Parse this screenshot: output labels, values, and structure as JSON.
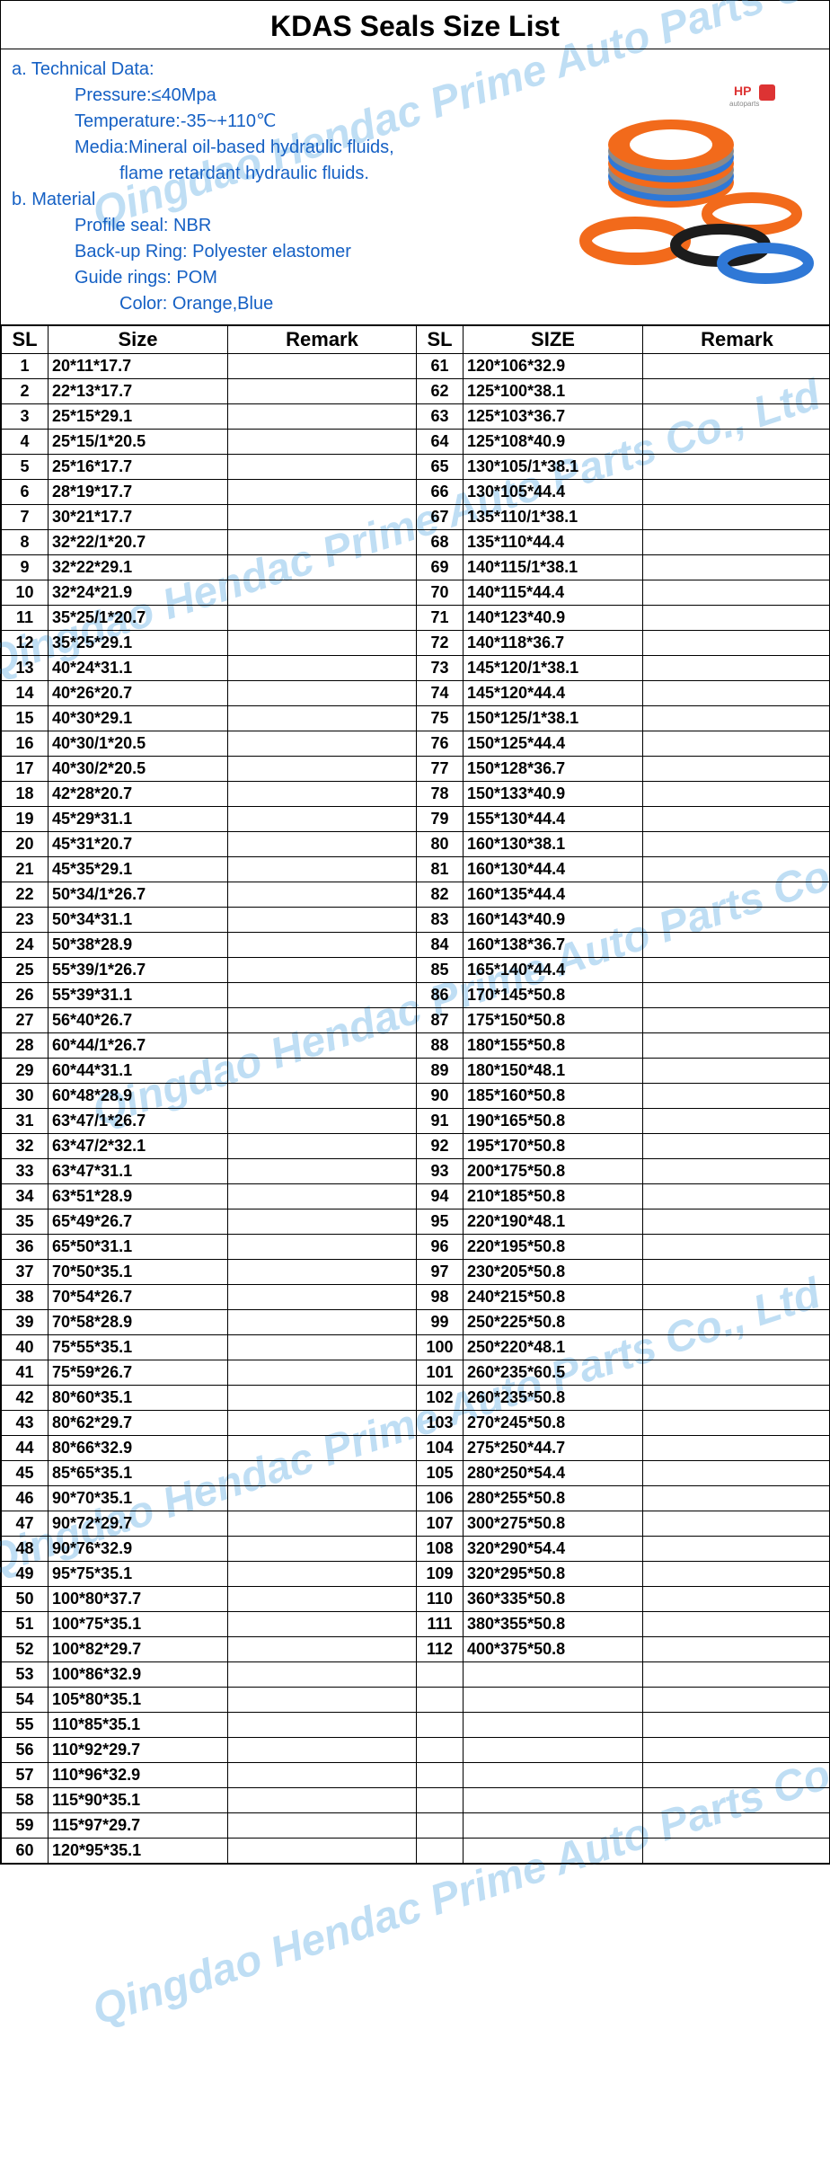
{
  "title": "KDAS Seals Size List",
  "watermark_text": "Qingdao Hendac Prime Auto Parts Co., Ltd",
  "watermark_color": "#4aa3e0",
  "tech": {
    "section_a": "a. Technical Data:",
    "pressure": "Pressure:≤40Mpa",
    "temperature": "Temperature:-35~+110℃",
    "media1": "Media:Mineral oil-based hydraulic fluids,",
    "media2": "flame retardant hydraulic fluids.",
    "section_b": "b. Material",
    "profile": "Profile seal: NBR",
    "backup": "Back-up Ring: Polyester elastomer",
    "guide": "Guide rings: POM",
    "color": "Color: Orange,Blue"
  },
  "headers": {
    "sl": "SL",
    "size_left": "Size",
    "remark": "Remark",
    "size_right": "SIZE"
  },
  "colors": {
    "text_blue": "#1560c4",
    "seal_orange": "#f26a1b",
    "seal_blue": "#2f78d6",
    "seal_dark": "#1c1c1c",
    "seal_gray": "#8a8a8a"
  },
  "rows_left": [
    {
      "sl": "1",
      "size": "20*11*17.7",
      "remark": ""
    },
    {
      "sl": "2",
      "size": "22*13*17.7",
      "remark": ""
    },
    {
      "sl": "3",
      "size": "25*15*29.1",
      "remark": ""
    },
    {
      "sl": "4",
      "size": "25*15/1*20.5",
      "remark": ""
    },
    {
      "sl": "5",
      "size": "25*16*17.7",
      "remark": ""
    },
    {
      "sl": "6",
      "size": "28*19*17.7",
      "remark": ""
    },
    {
      "sl": "7",
      "size": "30*21*17.7",
      "remark": ""
    },
    {
      "sl": "8",
      "size": "32*22/1*20.7",
      "remark": ""
    },
    {
      "sl": "9",
      "size": "32*22*29.1",
      "remark": ""
    },
    {
      "sl": "10",
      "size": "32*24*21.9",
      "remark": ""
    },
    {
      "sl": "11",
      "size": "35*25/1*20.7",
      "remark": ""
    },
    {
      "sl": "12",
      "size": "35*25*29.1",
      "remark": ""
    },
    {
      "sl": "13",
      "size": "40*24*31.1",
      "remark": ""
    },
    {
      "sl": "14",
      "size": "40*26*20.7",
      "remark": ""
    },
    {
      "sl": "15",
      "size": "40*30*29.1",
      "remark": ""
    },
    {
      "sl": "16",
      "size": "40*30/1*20.5",
      "remark": ""
    },
    {
      "sl": "17",
      "size": "40*30/2*20.5",
      "remark": ""
    },
    {
      "sl": "18",
      "size": "42*28*20.7",
      "remark": ""
    },
    {
      "sl": "19",
      "size": "45*29*31.1",
      "remark": ""
    },
    {
      "sl": "20",
      "size": "45*31*20.7",
      "remark": ""
    },
    {
      "sl": "21",
      "size": "45*35*29.1",
      "remark": ""
    },
    {
      "sl": "22",
      "size": "50*34/1*26.7",
      "remark": ""
    },
    {
      "sl": "23",
      "size": "50*34*31.1",
      "remark": ""
    },
    {
      "sl": "24",
      "size": "50*38*28.9",
      "remark": ""
    },
    {
      "sl": "25",
      "size": "55*39/1*26.7",
      "remark": ""
    },
    {
      "sl": "26",
      "size": "55*39*31.1",
      "remark": ""
    },
    {
      "sl": "27",
      "size": "56*40*26.7",
      "remark": ""
    },
    {
      "sl": "28",
      "size": "60*44/1*26.7",
      "remark": ""
    },
    {
      "sl": "29",
      "size": "60*44*31.1",
      "remark": ""
    },
    {
      "sl": "30",
      "size": "60*48*28.9",
      "remark": ""
    },
    {
      "sl": "31",
      "size": "63*47/1*26.7",
      "remark": ""
    },
    {
      "sl": "32",
      "size": "63*47/2*32.1",
      "remark": ""
    },
    {
      "sl": "33",
      "size": "63*47*31.1",
      "remark": ""
    },
    {
      "sl": "34",
      "size": "63*51*28.9",
      "remark": ""
    },
    {
      "sl": "35",
      "size": "65*49*26.7",
      "remark": ""
    },
    {
      "sl": "36",
      "size": "65*50*31.1",
      "remark": ""
    },
    {
      "sl": "37",
      "size": "70*50*35.1",
      "remark": ""
    },
    {
      "sl": "38",
      "size": "70*54*26.7",
      "remark": ""
    },
    {
      "sl": "39",
      "size": "70*58*28.9",
      "remark": ""
    },
    {
      "sl": "40",
      "size": "75*55*35.1",
      "remark": ""
    },
    {
      "sl": "41",
      "size": "75*59*26.7",
      "remark": ""
    },
    {
      "sl": "42",
      "size": "80*60*35.1",
      "remark": ""
    },
    {
      "sl": "43",
      "size": "80*62*29.7",
      "remark": ""
    },
    {
      "sl": "44",
      "size": "80*66*32.9",
      "remark": ""
    },
    {
      "sl": "45",
      "size": "85*65*35.1",
      "remark": ""
    },
    {
      "sl": "46",
      "size": "90*70*35.1",
      "remark": ""
    },
    {
      "sl": "47",
      "size": "90*72*29.7",
      "remark": ""
    },
    {
      "sl": "48",
      "size": "90*76*32.9",
      "remark": ""
    },
    {
      "sl": "49",
      "size": "95*75*35.1",
      "remark": ""
    },
    {
      "sl": "50",
      "size": "100*80*37.7",
      "remark": ""
    },
    {
      "sl": "51",
      "size": "100*75*35.1",
      "remark": ""
    },
    {
      "sl": "52",
      "size": "100*82*29.7",
      "remark": ""
    },
    {
      "sl": "53",
      "size": "100*86*32.9",
      "remark": ""
    },
    {
      "sl": "54",
      "size": "105*80*35.1",
      "remark": ""
    },
    {
      "sl": "55",
      "size": "110*85*35.1",
      "remark": ""
    },
    {
      "sl": "56",
      "size": "110*92*29.7",
      "remark": ""
    },
    {
      "sl": "57",
      "size": "110*96*32.9",
      "remark": ""
    },
    {
      "sl": "58",
      "size": "115*90*35.1",
      "remark": ""
    },
    {
      "sl": "59",
      "size": "115*97*29.7",
      "remark": ""
    },
    {
      "sl": "60",
      "size": "120*95*35.1",
      "remark": ""
    }
  ],
  "rows_right": [
    {
      "sl": "61",
      "size": "120*106*32.9",
      "remark": ""
    },
    {
      "sl": "62",
      "size": "125*100*38.1",
      "remark": ""
    },
    {
      "sl": "63",
      "size": "125*103*36.7",
      "remark": ""
    },
    {
      "sl": "64",
      "size": "125*108*40.9",
      "remark": ""
    },
    {
      "sl": "65",
      "size": "130*105/1*38.1",
      "remark": ""
    },
    {
      "sl": "66",
      "size": "130*105*44.4",
      "remark": ""
    },
    {
      "sl": "67",
      "size": "135*110/1*38.1",
      "remark": ""
    },
    {
      "sl": "68",
      "size": "135*110*44.4",
      "remark": ""
    },
    {
      "sl": "69",
      "size": "140*115/1*38.1",
      "remark": ""
    },
    {
      "sl": "70",
      "size": "140*115*44.4",
      "remark": ""
    },
    {
      "sl": "71",
      "size": "140*123*40.9",
      "remark": ""
    },
    {
      "sl": "72",
      "size": "140*118*36.7",
      "remark": ""
    },
    {
      "sl": "73",
      "size": "145*120/1*38.1",
      "remark": ""
    },
    {
      "sl": "74",
      "size": "145*120*44.4",
      "remark": ""
    },
    {
      "sl": "75",
      "size": "150*125/1*38.1",
      "remark": ""
    },
    {
      "sl": "76",
      "size": "150*125*44.4",
      "remark": ""
    },
    {
      "sl": "77",
      "size": "150*128*36.7",
      "remark": ""
    },
    {
      "sl": "78",
      "size": "150*133*40.9",
      "remark": ""
    },
    {
      "sl": "79",
      "size": "155*130*44.4",
      "remark": ""
    },
    {
      "sl": "80",
      "size": "160*130*38.1",
      "remark": ""
    },
    {
      "sl": "81",
      "size": "160*130*44.4",
      "remark": ""
    },
    {
      "sl": "82",
      "size": "160*135*44.4",
      "remark": ""
    },
    {
      "sl": "83",
      "size": "160*143*40.9",
      "remark": ""
    },
    {
      "sl": "84",
      "size": "160*138*36.7",
      "remark": ""
    },
    {
      "sl": "85",
      "size": "165*140*44.4",
      "remark": ""
    },
    {
      "sl": "86",
      "size": "170*145*50.8",
      "remark": ""
    },
    {
      "sl": "87",
      "size": "175*150*50.8",
      "remark": ""
    },
    {
      "sl": "88",
      "size": "180*155*50.8",
      "remark": ""
    },
    {
      "sl": "89",
      "size": "180*150*48.1",
      "remark": ""
    },
    {
      "sl": "90",
      "size": "185*160*50.8",
      "remark": ""
    },
    {
      "sl": "91",
      "size": "190*165*50.8",
      "remark": ""
    },
    {
      "sl": "92",
      "size": "195*170*50.8",
      "remark": ""
    },
    {
      "sl": "93",
      "size": "200*175*50.8",
      "remark": ""
    },
    {
      "sl": "94",
      "size": "210*185*50.8",
      "remark": ""
    },
    {
      "sl": "95",
      "size": "220*190*48.1",
      "remark": ""
    },
    {
      "sl": "96",
      "size": "220*195*50.8",
      "remark": ""
    },
    {
      "sl": "97",
      "size": "230*205*50.8",
      "remark": ""
    },
    {
      "sl": "98",
      "size": "240*215*50.8",
      "remark": ""
    },
    {
      "sl": "99",
      "size": "250*225*50.8",
      "remark": ""
    },
    {
      "sl": "100",
      "size": "250*220*48.1",
      "remark": ""
    },
    {
      "sl": "101",
      "size": "260*235*60.5",
      "remark": ""
    },
    {
      "sl": "102",
      "size": "260*235*50.8",
      "remark": ""
    },
    {
      "sl": "103",
      "size": "270*245*50.8",
      "remark": ""
    },
    {
      "sl": "104",
      "size": "275*250*44.7",
      "remark": ""
    },
    {
      "sl": "105",
      "size": "280*250*54.4",
      "remark": ""
    },
    {
      "sl": "106",
      "size": "280*255*50.8",
      "remark": ""
    },
    {
      "sl": "107",
      "size": "300*275*50.8",
      "remark": ""
    },
    {
      "sl": "108",
      "size": "320*290*54.4",
      "remark": ""
    },
    {
      "sl": "109",
      "size": "320*295*50.8",
      "remark": ""
    },
    {
      "sl": "110",
      "size": "360*335*50.8",
      "remark": ""
    },
    {
      "sl": "111",
      "size": "380*355*50.8",
      "remark": ""
    },
    {
      "sl": "112",
      "size": "400*375*50.8",
      "remark": ""
    },
    {
      "sl": "",
      "size": "",
      "remark": ""
    },
    {
      "sl": "",
      "size": "",
      "remark": ""
    },
    {
      "sl": "",
      "size": "",
      "remark": ""
    },
    {
      "sl": "",
      "size": "",
      "remark": ""
    },
    {
      "sl": "",
      "size": "",
      "remark": ""
    },
    {
      "sl": "",
      "size": "",
      "remark": ""
    },
    {
      "sl": "",
      "size": "",
      "remark": ""
    },
    {
      "sl": "",
      "size": "",
      "remark": ""
    }
  ]
}
